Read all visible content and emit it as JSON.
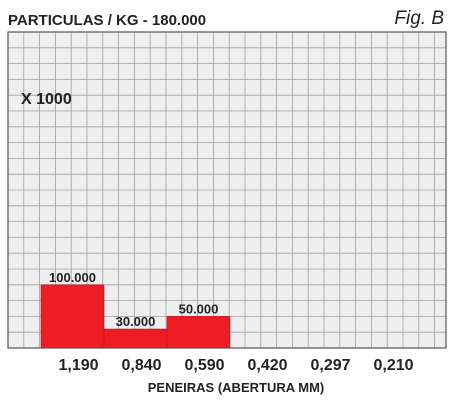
{
  "chart_data": {
    "type": "bar",
    "title": "PARTICULAS / KG - 180.000",
    "figure_label": "Fig. B",
    "scale_note": "X 1000",
    "xlabel": "PENEIRAS (ABERTURA MM)",
    "ylabel": "",
    "categories": [
      "1,190",
      "0,840",
      "0,590",
      "0,420",
      "0,297",
      "0,210"
    ],
    "values": [
      100,
      30,
      50,
      null,
      null,
      null
    ],
    "data_labels": [
      "100.000",
      "30.000",
      "50.000",
      "",
      "",
      ""
    ],
    "ylim": [
      0,
      500
    ],
    "grid": true,
    "legend": "none",
    "colors": {
      "bar": "#ee1c24",
      "bar_edge": "#c8101a",
      "grid": "#a0a0a0",
      "plot_bg": "#efefef",
      "frame": "#555555"
    }
  }
}
